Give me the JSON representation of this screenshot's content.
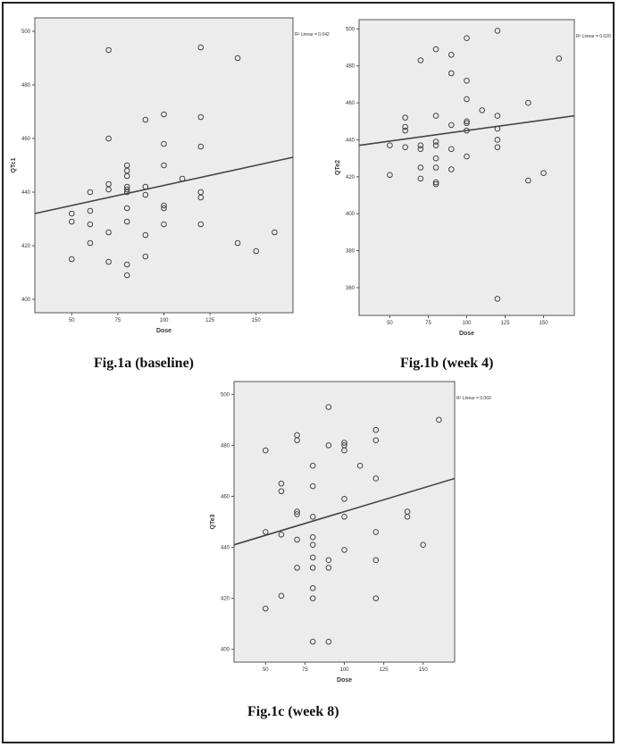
{
  "chart_data": [
    {
      "type": "scatter",
      "caption": "Fig.1a (baseline)",
      "xlabel": "Dose",
      "ylabel": "QTc1",
      "r2_label": "R² Linear = 0.042",
      "xlim": [
        30,
        170
      ],
      "ylim": [
        395,
        505
      ],
      "xticks": [
        50,
        75,
        100,
        125,
        150
      ],
      "yticks": [
        400,
        420,
        440,
        460,
        480,
        500
      ],
      "fit_line": [
        [
          30,
          432
        ],
        [
          170,
          453
        ]
      ],
      "points": [
        [
          50,
          432
        ],
        [
          50,
          429
        ],
        [
          50,
          415
        ],
        [
          60,
          440
        ],
        [
          60,
          433
        ],
        [
          60,
          428
        ],
        [
          60,
          421
        ],
        [
          70,
          493
        ],
        [
          70,
          460
        ],
        [
          70,
          443
        ],
        [
          70,
          441
        ],
        [
          70,
          425
        ],
        [
          70,
          414
        ],
        [
          80,
          450
        ],
        [
          80,
          448
        ],
        [
          80,
          446
        ],
        [
          80,
          442
        ],
        [
          80,
          441
        ],
        [
          80,
          440
        ],
        [
          80,
          434
        ],
        [
          80,
          429
        ],
        [
          80,
          413
        ],
        [
          80,
          409
        ],
        [
          90,
          467
        ],
        [
          90,
          442
        ],
        [
          90,
          439
        ],
        [
          90,
          424
        ],
        [
          90,
          416
        ],
        [
          100,
          469
        ],
        [
          100,
          458
        ],
        [
          100,
          450
        ],
        [
          100,
          435
        ],
        [
          100,
          434
        ],
        [
          100,
          428
        ],
        [
          110,
          445
        ],
        [
          120,
          494
        ],
        [
          120,
          468
        ],
        [
          120,
          457
        ],
        [
          120,
          440
        ],
        [
          120,
          438
        ],
        [
          120,
          428
        ],
        [
          140,
          490
        ],
        [
          140,
          421
        ],
        [
          150,
          418
        ],
        [
          160,
          425
        ]
      ]
    },
    {
      "type": "scatter",
      "caption": "Fig.1b (week 4)",
      "xlabel": "Dose",
      "ylabel": "QTe2",
      "r2_label": "R² Linear = 0.020",
      "xlim": [
        30,
        170
      ],
      "ylim": [
        345,
        505
      ],
      "xticks": [
        50,
        75,
        100,
        125,
        150
      ],
      "yticks": [
        360,
        380,
        400,
        420,
        440,
        460,
        480,
        500
      ],
      "fit_line": [
        [
          30,
          437
        ],
        [
          170,
          453
        ]
      ],
      "points": [
        [
          50,
          437
        ],
        [
          50,
          421
        ],
        [
          60,
          452
        ],
        [
          60,
          447
        ],
        [
          60,
          445
        ],
        [
          60,
          436
        ],
        [
          70,
          483
        ],
        [
          70,
          437
        ],
        [
          70,
          435
        ],
        [
          70,
          425
        ],
        [
          70,
          419
        ],
        [
          80,
          489
        ],
        [
          80,
          453
        ],
        [
          80,
          439
        ],
        [
          80,
          437
        ],
        [
          80,
          430
        ],
        [
          80,
          425
        ],
        [
          80,
          417
        ],
        [
          80,
          416
        ],
        [
          90,
          486
        ],
        [
          90,
          476
        ],
        [
          90,
          448
        ],
        [
          90,
          435
        ],
        [
          90,
          424
        ],
        [
          100,
          495
        ],
        [
          100,
          472
        ],
        [
          100,
          462
        ],
        [
          100,
          450
        ],
        [
          100,
          449
        ],
        [
          100,
          445
        ],
        [
          100,
          431
        ],
        [
          110,
          456
        ],
        [
          120,
          499
        ],
        [
          120,
          453
        ],
        [
          120,
          446
        ],
        [
          120,
          440
        ],
        [
          120,
          436
        ],
        [
          120,
          354
        ],
        [
          140,
          460
        ],
        [
          140,
          418
        ],
        [
          150,
          422
        ],
        [
          160,
          484
        ]
      ]
    },
    {
      "type": "scatter",
      "caption": "Fig.1c (week 8)",
      "xlabel": "Dose",
      "ylabel": "QTe3",
      "r2_label": "R² Linear = 0.060",
      "xlim": [
        30,
        170
      ],
      "ylim": [
        395,
        505
      ],
      "xticks": [
        50,
        75,
        100,
        125,
        150
      ],
      "yticks": [
        400,
        420,
        440,
        460,
        480,
        500
      ],
      "fit_line": [
        [
          30,
          441
        ],
        [
          170,
          467
        ]
      ],
      "points": [
        [
          50,
          478
        ],
        [
          50,
          446
        ],
        [
          50,
          416
        ],
        [
          60,
          465
        ],
        [
          60,
          462
        ],
        [
          60,
          445
        ],
        [
          60,
          421
        ],
        [
          70,
          484
        ],
        [
          70,
          482
        ],
        [
          70,
          454
        ],
        [
          70,
          453
        ],
        [
          70,
          443
        ],
        [
          70,
          432
        ],
        [
          80,
          472
        ],
        [
          80,
          464
        ],
        [
          80,
          452
        ],
        [
          80,
          444
        ],
        [
          80,
          441
        ],
        [
          80,
          436
        ],
        [
          80,
          432
        ],
        [
          80,
          424
        ],
        [
          80,
          420
        ],
        [
          80,
          403
        ],
        [
          90,
          495
        ],
        [
          90,
          480
        ],
        [
          90,
          435
        ],
        [
          90,
          432
        ],
        [
          90,
          403
        ],
        [
          100,
          481
        ],
        [
          100,
          480
        ],
        [
          100,
          478
        ],
        [
          100,
          459
        ],
        [
          100,
          452
        ],
        [
          100,
          439
        ],
        [
          110,
          472
        ],
        [
          120,
          486
        ],
        [
          120,
          482
        ],
        [
          120,
          467
        ],
        [
          120,
          446
        ],
        [
          120,
          435
        ],
        [
          120,
          420
        ],
        [
          140,
          454
        ],
        [
          140,
          452
        ],
        [
          150,
          441
        ],
        [
          160,
          490
        ]
      ]
    }
  ]
}
